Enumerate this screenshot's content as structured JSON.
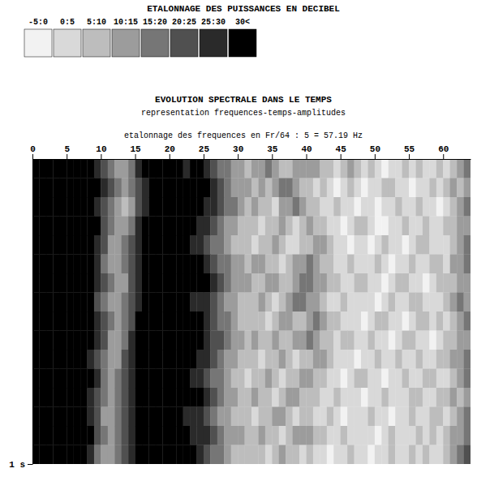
{
  "chart_data": {
    "type": "heatmap",
    "title": "EVOLUTION SPECTRALE DANS LE TEMPS",
    "subtitle": "representation frequences-temps-amplitudes",
    "x_label": "etalonnage des frequences en Fr/64 : 5 = 57.19 Hz",
    "color_bar": {
      "title": "ETALONNAGE DES PUISSANCES EN DECIBEL",
      "bins": [
        -5,
        0,
        5,
        10,
        15,
        20,
        25,
        30
      ],
      "labels": [
        "-5:0",
        "0:5",
        "5:10",
        "10:15",
        "15:20",
        "20:25",
        "25:30",
        "30<"
      ],
      "colors": [
        "#f2f2f2",
        "#d9d9d9",
        "#bdbdbd",
        "#9c9c9c",
        "#767676",
        "#505050",
        "#2a2a2a",
        "#000000"
      ]
    },
    "x": [
      0,
      1,
      2,
      3,
      4,
      5,
      6,
      7,
      8,
      9,
      10,
      11,
      12,
      13,
      14,
      15,
      16,
      17,
      18,
      19,
      20,
      21,
      22,
      23,
      24,
      25,
      26,
      27,
      28,
      29,
      30,
      31,
      32,
      33,
      34,
      35,
      36,
      37,
      38,
      39,
      40,
      41,
      42,
      43,
      44,
      45,
      46,
      47,
      48,
      49,
      50,
      51,
      52,
      53,
      54,
      55,
      56,
      57,
      58,
      59,
      60,
      61,
      62,
      63
    ],
    "y": [
      0,
      0.0625,
      0.125,
      0.1875,
      0.25,
      0.3125,
      0.375,
      0.4375,
      0.5,
      0.5625,
      0.625,
      0.6875,
      0.75,
      0.8125,
      0.875,
      0.9375
    ],
    "xlim": [
      0,
      64
    ],
    "ylim": [
      0,
      1
    ],
    "xticks": [
      0,
      5,
      10,
      15,
      20,
      25,
      30,
      35,
      40,
      45,
      50,
      55,
      60
    ],
    "yticks": [
      {
        "value": 1,
        "label": "1 s"
      }
    ],
    "cells": [
      [
        32,
        32,
        32,
        32,
        32,
        32,
        32,
        32,
        32,
        27,
        22,
        17,
        12,
        12,
        17,
        27,
        32,
        32,
        32,
        32,
        32,
        32,
        27,
        32,
        32,
        27,
        22,
        17,
        17,
        12,
        12,
        7,
        12,
        12,
        17,
        12,
        7,
        7,
        12,
        12,
        12,
        12,
        7,
        7,
        2,
        7,
        12,
        7,
        2,
        7,
        2,
        -2,
        2,
        2,
        7,
        2,
        7,
        2,
        2,
        7,
        2,
        7,
        12,
        17
      ],
      [
        32,
        32,
        32,
        32,
        32,
        32,
        32,
        32,
        32,
        32,
        27,
        22,
        17,
        12,
        17,
        22,
        27,
        32,
        32,
        32,
        32,
        32,
        32,
        32,
        32,
        32,
        27,
        22,
        17,
        12,
        12,
        12,
        7,
        12,
        7,
        12,
        17,
        17,
        12,
        7,
        7,
        2,
        7,
        2,
        -2,
        2,
        7,
        2,
        -2,
        2,
        2,
        7,
        7,
        2,
        2,
        -2,
        2,
        2,
        7,
        2,
        7,
        12,
        7,
        12
      ],
      [
        32,
        32,
        32,
        32,
        32,
        32,
        32,
        32,
        32,
        27,
        22,
        17,
        12,
        7,
        12,
        22,
        27,
        32,
        32,
        32,
        32,
        32,
        32,
        32,
        32,
        27,
        27,
        22,
        17,
        17,
        12,
        7,
        12,
        7,
        7,
        2,
        12,
        12,
        17,
        12,
        7,
        7,
        2,
        2,
        7,
        2,
        2,
        -2,
        2,
        2,
        -2,
        2,
        2,
        7,
        2,
        2,
        7,
        2,
        2,
        -2,
        2,
        7,
        12,
        17
      ],
      [
        32,
        32,
        32,
        32,
        32,
        32,
        32,
        32,
        32,
        32,
        22,
        17,
        12,
        12,
        17,
        27,
        32,
        32,
        32,
        32,
        32,
        32,
        32,
        32,
        27,
        27,
        22,
        17,
        12,
        12,
        7,
        7,
        7,
        2,
        7,
        7,
        12,
        7,
        2,
        7,
        12,
        7,
        7,
        2,
        2,
        -2,
        2,
        7,
        7,
        2,
        -2,
        -2,
        2,
        2,
        7,
        2,
        2,
        7,
        2,
        2,
        7,
        7,
        12,
        12
      ],
      [
        32,
        32,
        32,
        32,
        32,
        32,
        32,
        32,
        32,
        27,
        22,
        12,
        12,
        17,
        22,
        27,
        32,
        32,
        32,
        32,
        32,
        32,
        32,
        27,
        27,
        22,
        17,
        17,
        12,
        7,
        7,
        7,
        2,
        7,
        7,
        12,
        7,
        2,
        2,
        7,
        7,
        12,
        12,
        7,
        2,
        2,
        -2,
        2,
        2,
        -2,
        2,
        7,
        2,
        2,
        -2,
        2,
        7,
        7,
        2,
        2,
        2,
        7,
        12,
        17
      ],
      [
        32,
        32,
        32,
        32,
        32,
        32,
        32,
        32,
        32,
        27,
        17,
        12,
        12,
        17,
        22,
        27,
        32,
        32,
        32,
        32,
        32,
        32,
        32,
        32,
        32,
        27,
        22,
        17,
        17,
        12,
        12,
        7,
        12,
        12,
        7,
        7,
        2,
        7,
        12,
        12,
        17,
        12,
        7,
        7,
        2,
        2,
        7,
        2,
        2,
        2,
        7,
        2,
        -2,
        2,
        2,
        7,
        2,
        2,
        7,
        7,
        2,
        12,
        12,
        17
      ],
      [
        32,
        32,
        32,
        32,
        32,
        32,
        32,
        32,
        32,
        27,
        22,
        17,
        12,
        12,
        22,
        27,
        32,
        32,
        32,
        32,
        32,
        32,
        32,
        32,
        32,
        32,
        27,
        22,
        17,
        12,
        12,
        12,
        7,
        7,
        12,
        12,
        7,
        7,
        12,
        17,
        17,
        12,
        12,
        7,
        7,
        2,
        2,
        7,
        7,
        2,
        2,
        -2,
        2,
        7,
        7,
        2,
        2,
        -2,
        2,
        7,
        7,
        7,
        12,
        12
      ],
      [
        32,
        32,
        32,
        32,
        32,
        32,
        32,
        32,
        32,
        22,
        17,
        12,
        12,
        17,
        22,
        27,
        32,
        32,
        32,
        32,
        32,
        32,
        32,
        27,
        27,
        27,
        22,
        17,
        12,
        12,
        7,
        7,
        7,
        12,
        7,
        2,
        7,
        12,
        17,
        17,
        12,
        12,
        7,
        2,
        2,
        7,
        2,
        2,
        2,
        2,
        -2,
        2,
        7,
        2,
        2,
        7,
        7,
        2,
        2,
        2,
        7,
        12,
        17,
        12
      ],
      [
        32,
        32,
        32,
        32,
        32,
        32,
        32,
        32,
        32,
        27,
        22,
        17,
        12,
        17,
        22,
        32,
        32,
        32,
        32,
        32,
        32,
        32,
        32,
        32,
        32,
        27,
        22,
        17,
        17,
        12,
        7,
        7,
        7,
        7,
        2,
        7,
        12,
        12,
        7,
        7,
        12,
        17,
        12,
        7,
        7,
        2,
        2,
        2,
        -2,
        2,
        7,
        7,
        2,
        2,
        -2,
        2,
        7,
        7,
        2,
        7,
        2,
        7,
        12,
        17
      ],
      [
        32,
        32,
        32,
        32,
        32,
        32,
        32,
        32,
        32,
        27,
        22,
        12,
        12,
        17,
        27,
        32,
        32,
        32,
        32,
        32,
        32,
        32,
        32,
        32,
        32,
        27,
        22,
        22,
        17,
        12,
        12,
        7,
        12,
        7,
        7,
        12,
        7,
        7,
        12,
        12,
        17,
        12,
        7,
        7,
        2,
        7,
        7,
        2,
        2,
        7,
        2,
        2,
        -2,
        2,
        7,
        7,
        2,
        2,
        -2,
        2,
        7,
        7,
        12,
        12
      ],
      [
        32,
        32,
        32,
        32,
        32,
        32,
        32,
        32,
        27,
        22,
        17,
        12,
        12,
        22,
        27,
        32,
        32,
        32,
        32,
        32,
        32,
        32,
        32,
        32,
        27,
        27,
        22,
        17,
        12,
        12,
        7,
        7,
        7,
        2,
        7,
        7,
        12,
        7,
        2,
        7,
        7,
        12,
        12,
        7,
        2,
        2,
        2,
        -2,
        2,
        2,
        7,
        2,
        2,
        7,
        2,
        2,
        7,
        2,
        2,
        7,
        7,
        12,
        12,
        17
      ],
      [
        32,
        32,
        32,
        32,
        32,
        32,
        32,
        32,
        32,
        27,
        17,
        12,
        17,
        22,
        27,
        32,
        32,
        32,
        32,
        32,
        32,
        32,
        32,
        27,
        27,
        22,
        17,
        17,
        12,
        7,
        7,
        2,
        7,
        7,
        12,
        7,
        2,
        7,
        7,
        12,
        12,
        7,
        7,
        2,
        2,
        -2,
        2,
        7,
        7,
        2,
        2,
        -2,
        2,
        2,
        7,
        2,
        2,
        7,
        7,
        2,
        2,
        7,
        12,
        17
      ],
      [
        32,
        32,
        32,
        32,
        32,
        32,
        32,
        32,
        27,
        22,
        17,
        12,
        17,
        22,
        27,
        32,
        32,
        32,
        32,
        32,
        32,
        32,
        32,
        32,
        32,
        27,
        22,
        17,
        12,
        12,
        7,
        7,
        12,
        7,
        7,
        2,
        7,
        12,
        12,
        7,
        7,
        7,
        2,
        2,
        7,
        2,
        2,
        2,
        -2,
        2,
        2,
        7,
        2,
        2,
        2,
        7,
        7,
        2,
        2,
        7,
        7,
        12,
        7,
        12
      ],
      [
        32,
        32,
        32,
        32,
        32,
        32,
        32,
        32,
        27,
        22,
        12,
        12,
        17,
        22,
        27,
        32,
        32,
        32,
        32,
        32,
        32,
        32,
        27,
        27,
        27,
        22,
        17,
        12,
        12,
        7,
        7,
        7,
        2,
        7,
        7,
        12,
        12,
        7,
        2,
        7,
        7,
        2,
        2,
        7,
        2,
        -2,
        2,
        2,
        2,
        7,
        2,
        2,
        -2,
        2,
        2,
        7,
        2,
        2,
        7,
        7,
        2,
        7,
        12,
        17
      ],
      [
        32,
        32,
        32,
        32,
        32,
        32,
        32,
        32,
        32,
        22,
        17,
        12,
        17,
        22,
        27,
        32,
        32,
        32,
        32,
        32,
        32,
        32,
        32,
        27,
        27,
        27,
        22,
        17,
        12,
        12,
        12,
        7,
        7,
        12,
        7,
        7,
        2,
        7,
        12,
        12,
        12,
        7,
        7,
        2,
        2,
        7,
        2,
        2,
        2,
        2,
        -2,
        2,
        7,
        2,
        2,
        2,
        7,
        2,
        7,
        2,
        7,
        12,
        12,
        17
      ],
      [
        32,
        32,
        32,
        32,
        32,
        32,
        32,
        32,
        27,
        17,
        12,
        12,
        17,
        22,
        27,
        32,
        32,
        32,
        32,
        32,
        32,
        32,
        32,
        32,
        27,
        22,
        17,
        17,
        12,
        7,
        7,
        7,
        7,
        7,
        2,
        7,
        12,
        7,
        7,
        2,
        7,
        2,
        2,
        -2,
        2,
        2,
        7,
        2,
        2,
        -2,
        2,
        2,
        7,
        2,
        2,
        7,
        2,
        7,
        2,
        2,
        7,
        12,
        17,
        22
      ]
    ]
  }
}
